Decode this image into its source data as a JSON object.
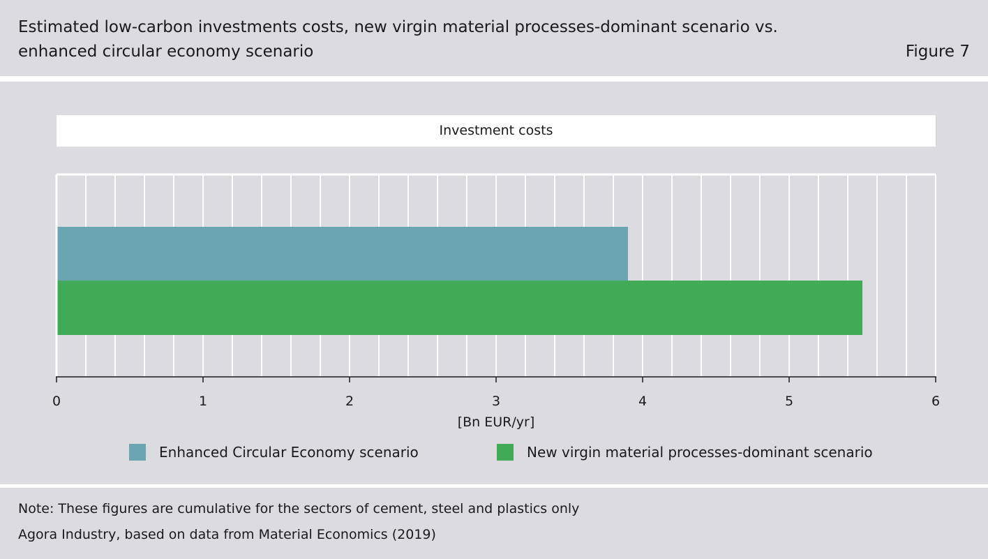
{
  "header": {
    "title_line_1": "Estimated low-carbon investments costs, new virgin material processes-dominant scenario vs.",
    "title_line_2": "enhanced circular economy scenario",
    "figure_label": "Figure 7"
  },
  "chart_data": {
    "type": "bar",
    "orientation": "horizontal",
    "title": "Investment costs",
    "xlabel": "[Bn EUR/yr]",
    "ylabel": "",
    "xlim": [
      0,
      6
    ],
    "x_ticks": [
      0,
      1,
      2,
      3,
      4,
      5,
      6
    ],
    "minor_grid_step": 0.2,
    "grid": true,
    "legend_position": "bottom",
    "series": [
      {
        "name": "Enhanced Circular Economy scenario",
        "values": [
          3.9
        ],
        "color": "#6ba5b2"
      },
      {
        "name": "New virgin material processes-dominant scenario",
        "values": [
          5.5
        ],
        "color": "#41ab57"
      }
    ]
  },
  "footer": {
    "note": "Note: These figures are cumulative for the sectors of cement, steel and plastics only",
    "source": "Agora Industry, based on data from Material Economics (2019)"
  }
}
